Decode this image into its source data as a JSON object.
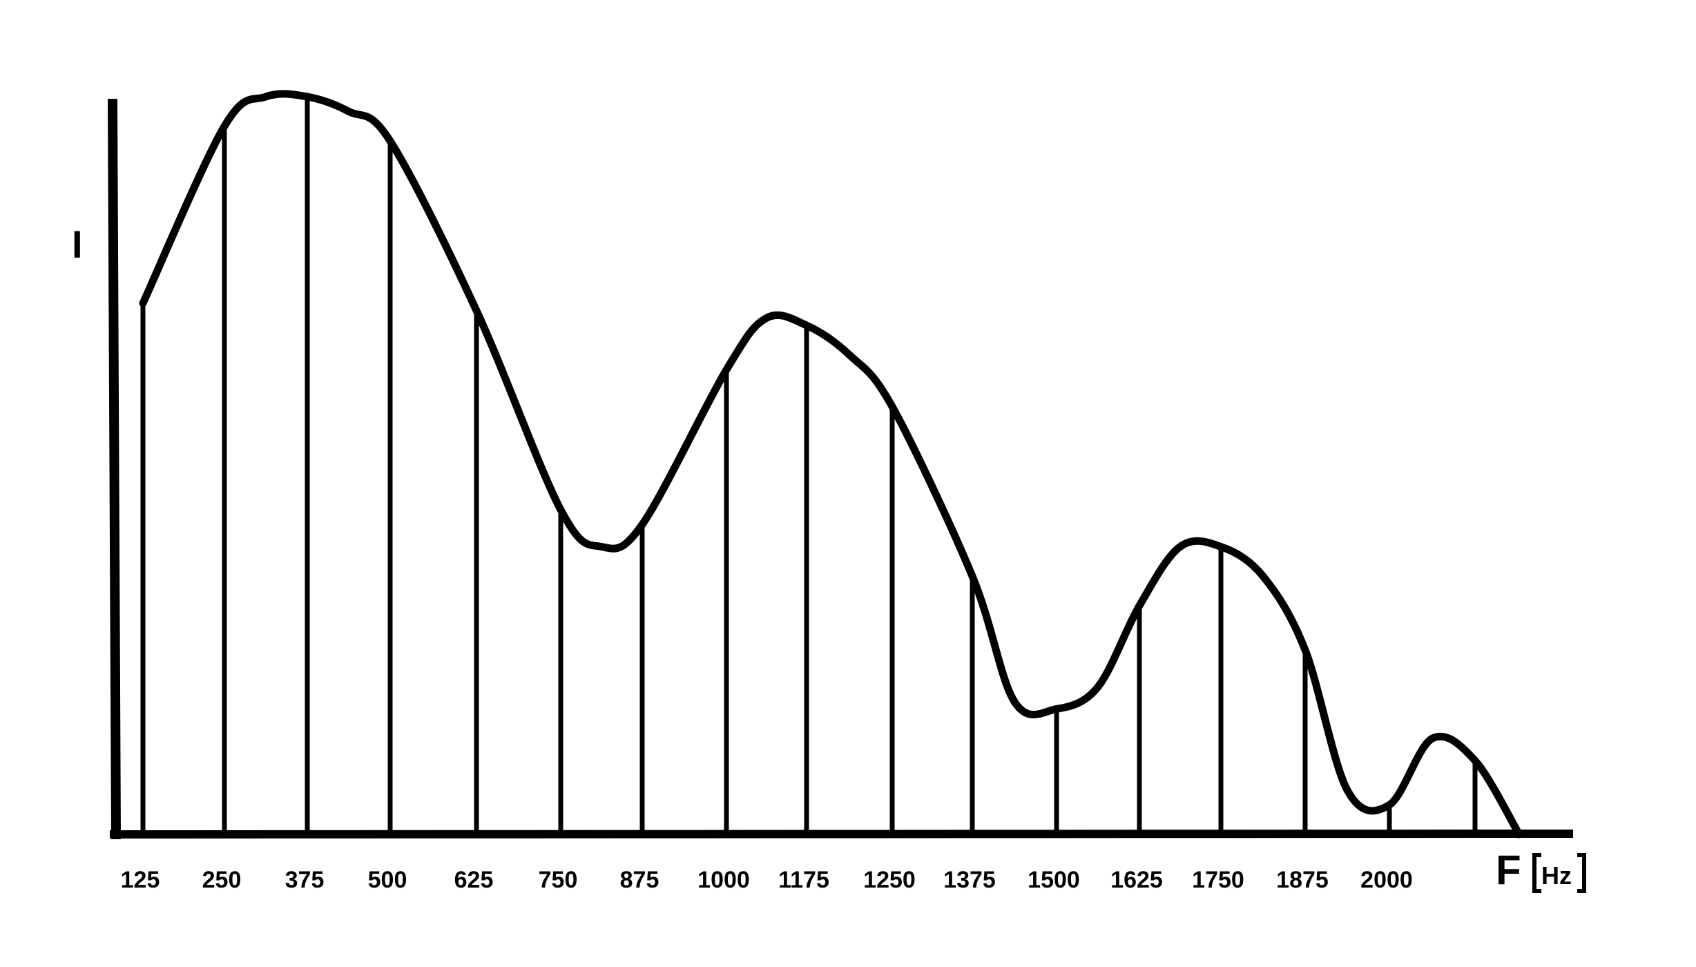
{
  "chart_data": {
    "type": "line",
    "title": "",
    "ylabel": "I",
    "xlabel": "F",
    "xunit": "Hz",
    "x_ticks": [
      "125",
      "250",
      "375",
      "500",
      "625",
      "750",
      "875",
      "1000",
      "1175",
      "1250",
      "1375",
      "1500",
      "1625",
      "1750",
      "1875",
      "2000"
    ],
    "grid": false,
    "y_ticks_shown": false,
    "curve": {
      "x": [
        125,
        250,
        312.5,
        375,
        437.5,
        500,
        625,
        750,
        812.5,
        875,
        1000,
        1087.5,
        1175,
        1212.5,
        1250,
        1375,
        1437.5,
        1500,
        1562.5,
        1625,
        1687.5,
        1750,
        1812.5,
        1875,
        1937.5,
        2000,
        2062.5,
        2125,
        2187.5
      ],
      "y": [
        0.72,
        0.96,
        1.0,
        1.0,
        0.98,
        0.94,
        0.71,
        0.44,
        0.39,
        0.42,
        0.63,
        0.7,
        0.69,
        0.65,
        0.58,
        0.35,
        0.18,
        0.17,
        0.2,
        0.31,
        0.39,
        0.39,
        0.35,
        0.25,
        0.06,
        0.04,
        0.13,
        0.1,
        0.0
      ]
    },
    "lines": {
      "x": [
        125,
        250,
        375,
        500,
        625,
        750,
        875,
        1000,
        1175,
        1250,
        1375,
        1500,
        1625,
        1750,
        1875,
        2000,
        2125
      ],
      "y": [
        0.72,
        0.96,
        1.0,
        0.94,
        0.71,
        0.44,
        0.42,
        0.63,
        0.69,
        0.58,
        0.35,
        0.17,
        0.31,
        0.39,
        0.25,
        0.04,
        0.1
      ]
    }
  }
}
